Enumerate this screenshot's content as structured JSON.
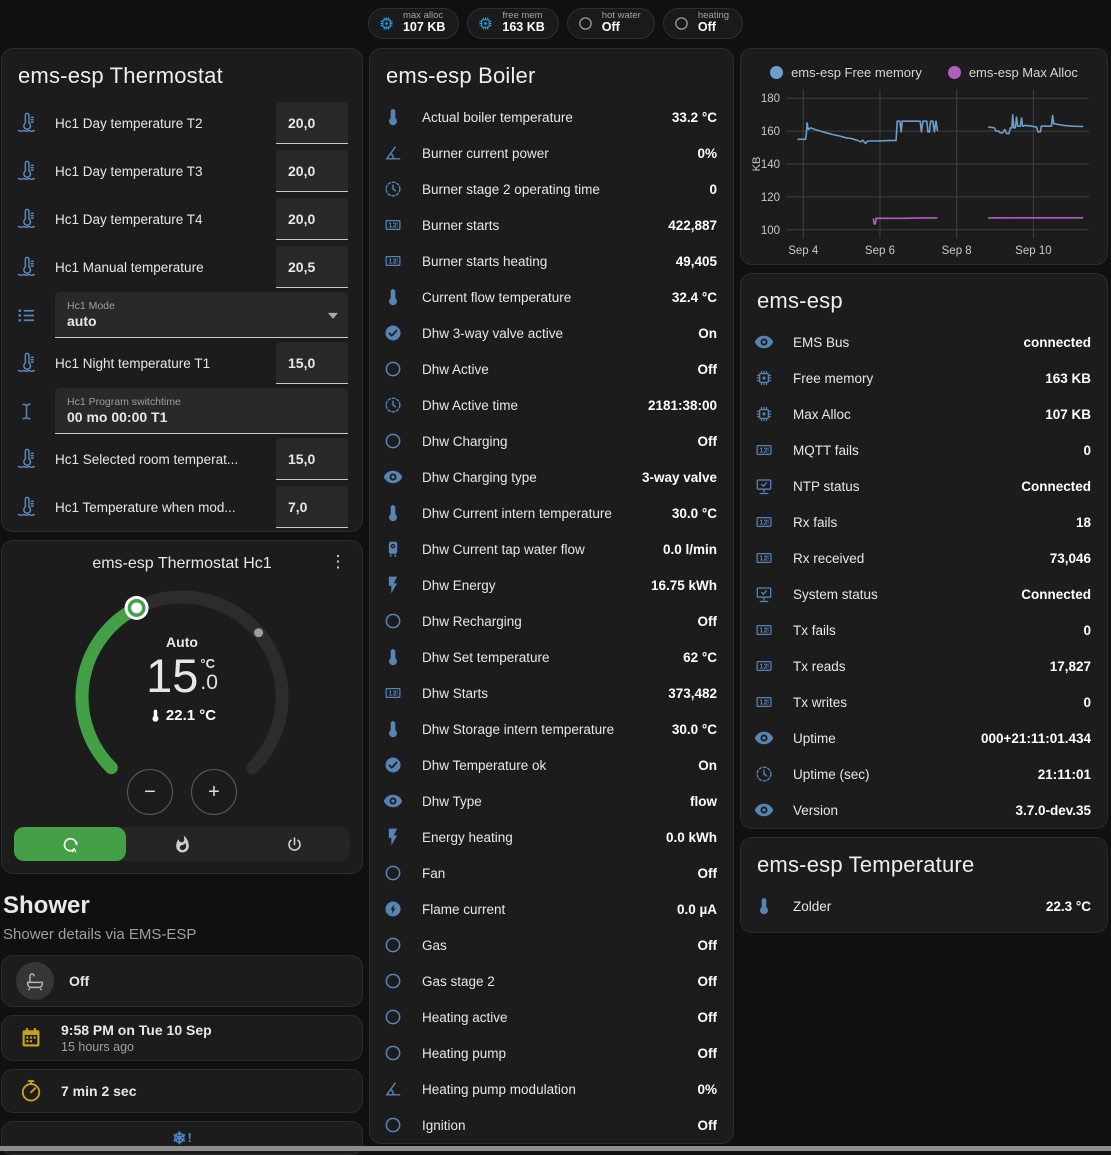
{
  "theme": {
    "background": "#101011",
    "card": "#1c1c1d",
    "icon_blue": "#5584b5",
    "badge_blue": "#2ba1e6",
    "amber": "#c9a21b",
    "accent_green": "#43a047",
    "chart_blue": "#6b9fcc",
    "chart_purple": "#b05fc0"
  },
  "header_badges": [
    {
      "icon": "chip",
      "icon_class": "blue",
      "label": "max alloc",
      "value": "107 KB"
    },
    {
      "icon": "chip",
      "icon_class": "blue",
      "label": "free mem",
      "value": "163 KB"
    },
    {
      "icon": "circle",
      "icon_class": "gray",
      "label": "hot water",
      "value": "Off"
    },
    {
      "icon": "circle",
      "icon_class": "gray",
      "label": "heating",
      "value": "Off"
    }
  ],
  "thermostat_card": {
    "title": "ems-esp Thermostat",
    "rows": [
      {
        "icon": "thermometer-water",
        "label": "Hc1 Day temperature T2",
        "type": "number",
        "value": "20,0"
      },
      {
        "icon": "thermometer-water",
        "label": "Hc1 Day temperature T3",
        "type": "number",
        "value": "20,0"
      },
      {
        "icon": "thermometer-water",
        "label": "Hc1 Day temperature T4",
        "type": "number",
        "value": "20,0"
      },
      {
        "icon": "thermometer-water",
        "label": "Hc1 Manual temperature",
        "type": "number",
        "value": "20,5"
      },
      {
        "icon": "format-list",
        "label": "Hc1 Mode",
        "type": "select",
        "value": "auto"
      },
      {
        "icon": "thermometer-water",
        "label": "Hc1 Night temperature T1",
        "type": "number",
        "value": "15,0"
      },
      {
        "icon": "cursor-text",
        "label": "Hc1 Program switchtime",
        "type": "text",
        "value": "00 mo 00:00 T1"
      },
      {
        "icon": "thermometer-water",
        "label": "Hc1 Selected room temperat...",
        "type": "number",
        "value": "15,0"
      },
      {
        "icon": "thermometer-water",
        "label": "Hc1 Temperature when mod...",
        "type": "number",
        "value": "7,0"
      }
    ]
  },
  "hc1_card": {
    "title": "ems-esp Thermostat Hc1",
    "mode_label": "Auto",
    "target_whole": "15",
    "target_decimal": ".0",
    "unit": "°C",
    "current_temp": "22.1 °C",
    "minus_label": "−",
    "plus_label": "+",
    "modes": [
      {
        "icon": "thermostat-auto",
        "name": "auto",
        "active": true
      },
      {
        "icon": "fire",
        "name": "heat",
        "active": false
      },
      {
        "icon": "power",
        "name": "off",
        "active": false
      }
    ]
  },
  "shower": {
    "title": "Shower",
    "subtitle": "Shower details via EMS-ESP",
    "items": [
      {
        "icon": "bathtub",
        "icon_style": "circle-gray",
        "primary": "Off"
      },
      {
        "icon": "calendar",
        "icon_style": "amber",
        "primary": "9:58 PM on Tue 10 Sep",
        "secondary": "15 hours ago"
      },
      {
        "icon": "timer",
        "icon_style": "amber",
        "primary": "7 min 2 sec"
      },
      {
        "icon": "snowflake-alert",
        "type": "icon-only"
      }
    ]
  },
  "boiler_card": {
    "title": "ems-esp Boiler",
    "rows": [
      {
        "icon": "thermometer",
        "label": "Actual boiler temperature",
        "value": "33.2 °C"
      },
      {
        "icon": "angle-acute",
        "label": "Burner current power",
        "value": "0%"
      },
      {
        "icon": "progress-clock",
        "label": "Burner stage 2 operating time",
        "value": "0"
      },
      {
        "icon": "counter",
        "label": "Burner starts",
        "value": "422,887"
      },
      {
        "icon": "counter",
        "label": "Burner starts heating",
        "value": "49,405"
      },
      {
        "icon": "thermometer",
        "label": "Current flow temperature",
        "value": "32.4 °C"
      },
      {
        "icon": "check-circle",
        "label": "Dhw 3-way valve active",
        "value": "On"
      },
      {
        "icon": "circle",
        "label": "Dhw Active",
        "value": "Off"
      },
      {
        "icon": "progress-clock",
        "label": "Dhw Active time",
        "value": "2181:38:00"
      },
      {
        "icon": "circle",
        "label": "Dhw Charging",
        "value": "Off"
      },
      {
        "icon": "eye",
        "label": "Dhw Charging type",
        "value": "3-way valve"
      },
      {
        "icon": "thermometer",
        "label": "Dhw Current intern temperature",
        "value": "30.0 °C"
      },
      {
        "icon": "water-boiler",
        "label": "Dhw Current tap water flow",
        "value": "0.0 l/min"
      },
      {
        "icon": "flash",
        "label": "Dhw Energy",
        "value": "16.75 kWh"
      },
      {
        "icon": "circle",
        "label": "Dhw Recharging",
        "value": "Off"
      },
      {
        "icon": "thermometer",
        "label": "Dhw Set temperature",
        "value": "62 °C"
      },
      {
        "icon": "counter",
        "label": "Dhw Starts",
        "value": "373,482"
      },
      {
        "icon": "thermometer",
        "label": "Dhw Storage intern temperature",
        "value": "30.0 °C"
      },
      {
        "icon": "check-circle",
        "label": "Dhw Temperature ok",
        "value": "On"
      },
      {
        "icon": "eye",
        "label": "Dhw Type",
        "value": "flow"
      },
      {
        "icon": "flash",
        "label": "Energy heating",
        "value": "0.0 kWh"
      },
      {
        "icon": "circle",
        "label": "Fan",
        "value": "Off"
      },
      {
        "icon": "flash-circle",
        "label": "Flame current",
        "value": "0.0 µA"
      },
      {
        "icon": "circle",
        "label": "Gas",
        "value": "Off"
      },
      {
        "icon": "circle",
        "label": "Gas stage 2",
        "value": "Off"
      },
      {
        "icon": "circle",
        "label": "Heating active",
        "value": "Off"
      },
      {
        "icon": "circle",
        "label": "Heating pump",
        "value": "Off"
      },
      {
        "icon": "angle-acute",
        "label": "Heating pump modulation",
        "value": "0%"
      },
      {
        "icon": "circle",
        "label": "Ignition",
        "value": "Off"
      }
    ]
  },
  "chart_data": {
    "type": "line",
    "title": "",
    "ylabel": "KB",
    "xlabel": "",
    "ylim": [
      95,
      185
    ],
    "yticks": [
      100,
      120,
      140,
      160,
      180
    ],
    "xlim": [
      3.55,
      11.45
    ],
    "xticks": [
      {
        "x": 4,
        "label": "Sep 4"
      },
      {
        "x": 6,
        "label": "Sep 6"
      },
      {
        "x": 8,
        "label": "Sep 8"
      },
      {
        "x": 10,
        "label": "Sep 10"
      }
    ],
    "grid": true,
    "legend_position": "top",
    "series": [
      {
        "name": "ems-esp Free memory",
        "color": "#6b9fcc",
        "unit": "KB",
        "segments": [
          [
            [
              3.85,
              155
            ],
            [
              4.06,
              155
            ],
            [
              4.08,
              158
            ],
            [
              4.1,
              165
            ],
            [
              4.13,
              161
            ],
            [
              4.2,
              162
            ],
            [
              4.3,
              161
            ],
            [
              4.45,
              160
            ],
            [
              4.6,
              159
            ],
            [
              4.75,
              158
            ],
            [
              4.95,
              157
            ],
            [
              5.1,
              156
            ],
            [
              5.25,
              155.5
            ],
            [
              5.4,
              154.5
            ],
            [
              5.5,
              153.5
            ],
            [
              5.55,
              154.5
            ],
            [
              5.62,
              152.5
            ],
            [
              5.68,
              154
            ],
            [
              5.95,
              154
            ],
            [
              6.2,
              154.2
            ],
            [
              6.42,
              154.3
            ],
            [
              6.45,
              166
            ],
            [
              6.52,
              166
            ],
            [
              6.55,
              159.5
            ],
            [
              6.58,
              166
            ],
            [
              6.9,
              166
            ],
            [
              7.05,
              166
            ],
            [
              7.08,
              159.5
            ],
            [
              7.12,
              166
            ],
            [
              7.22,
              166
            ],
            [
              7.25,
              159.5
            ],
            [
              7.29,
              159.5
            ],
            [
              7.32,
              166
            ],
            [
              7.38,
              166
            ],
            [
              7.42,
              159.5
            ],
            [
              7.46,
              166
            ],
            [
              7.5,
              160
            ]
          ],
          [
            [
              8.82,
              162.5
            ],
            [
              8.98,
              162
            ],
            [
              9.02,
              160
            ],
            [
              9.1,
              160
            ],
            [
              9.13,
              159
            ],
            [
              9.2,
              159
            ],
            [
              9.26,
              161
            ],
            [
              9.3,
              158.5
            ],
            [
              9.36,
              158.5
            ],
            [
              9.4,
              162
            ],
            [
              9.44,
              162
            ],
            [
              9.46,
              170
            ],
            [
              9.49,
              162
            ],
            [
              9.53,
              162
            ],
            [
              9.56,
              168.5
            ],
            [
              9.59,
              163
            ],
            [
              9.66,
              163
            ],
            [
              9.69,
              168
            ],
            [
              9.72,
              163
            ],
            [
              9.8,
              163.5
            ],
            [
              9.95,
              163
            ],
            [
              10.08,
              162.5
            ],
            [
              10.12,
              159.5
            ],
            [
              10.18,
              159.5
            ],
            [
              10.21,
              163
            ],
            [
              10.4,
              163
            ],
            [
              10.47,
              163
            ],
            [
              10.5,
              169.5
            ],
            [
              10.53,
              164.5
            ],
            [
              10.65,
              164
            ],
            [
              10.8,
              163.5
            ],
            [
              11.0,
              163
            ],
            [
              11.3,
              162.8
            ]
          ]
        ]
      },
      {
        "name": "ems-esp Max Alloc",
        "color": "#b05fc0",
        "unit": "KB",
        "segments": [
          [
            [
              5.83,
              107
            ],
            [
              5.85,
              103.5
            ],
            [
              5.88,
              103.5
            ],
            [
              5.9,
              107
            ],
            [
              6.6,
              107
            ],
            [
              7.1,
              107.2
            ],
            [
              7.5,
              107.2
            ]
          ],
          [
            [
              8.82,
              107.2
            ],
            [
              9.6,
              107.3
            ],
            [
              10.6,
              107.3
            ],
            [
              11.3,
              107.3
            ]
          ]
        ]
      }
    ]
  },
  "emsesp_card": {
    "title": "ems-esp",
    "rows": [
      {
        "icon": "eye",
        "label": "EMS Bus",
        "value": "connected"
      },
      {
        "icon": "chip",
        "label": "Free memory",
        "value": "163 KB"
      },
      {
        "icon": "chip",
        "label": "Max Alloc",
        "value": "107 KB"
      },
      {
        "icon": "counter",
        "label": "MQTT fails",
        "value": "0"
      },
      {
        "icon": "monitor-check",
        "label": "NTP status",
        "value": "Connected"
      },
      {
        "icon": "counter",
        "label": "Rx fails",
        "value": "18"
      },
      {
        "icon": "counter",
        "label": "Rx received",
        "value": "73,046"
      },
      {
        "icon": "monitor-check",
        "label": "System status",
        "value": "Connected"
      },
      {
        "icon": "counter",
        "label": "Tx fails",
        "value": "0"
      },
      {
        "icon": "counter",
        "label": "Tx reads",
        "value": "17,827"
      },
      {
        "icon": "counter",
        "label": "Tx writes",
        "value": "0"
      },
      {
        "icon": "eye",
        "label": "Uptime",
        "value": "000+21:11:01.434"
      },
      {
        "icon": "progress-clock",
        "label": "Uptime (sec)",
        "value": "21:11:01"
      },
      {
        "icon": "eye",
        "label": "Version",
        "value": "3.7.0-dev.35"
      }
    ]
  },
  "temperature_card": {
    "title": "ems-esp Temperature",
    "rows": [
      {
        "icon": "thermometer",
        "label": "Zolder",
        "value": "22.3 °C"
      }
    ]
  }
}
